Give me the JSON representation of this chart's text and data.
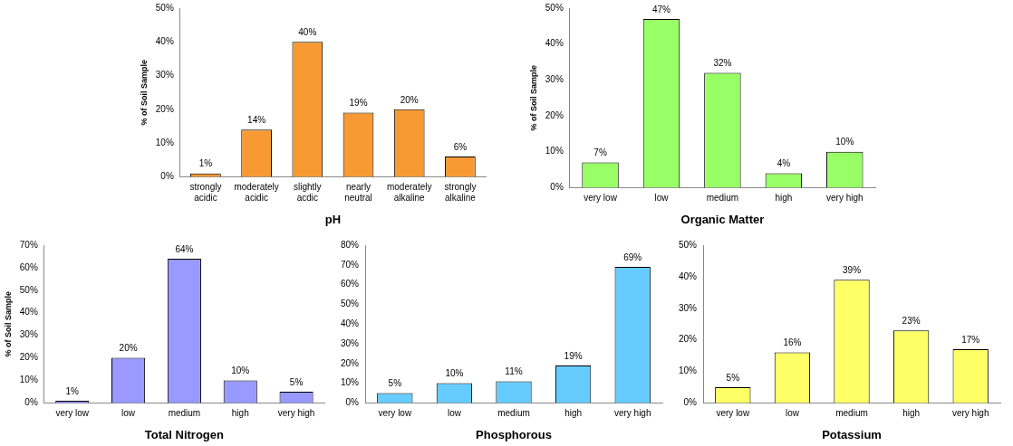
{
  "chart_data": [
    {
      "type": "bar",
      "xlabel": "pH",
      "ylabel": "% of Soil Sample",
      "categories": [
        "strongly acidic",
        "moderately acidic",
        "slightly acdic",
        "nearly neutral",
        "moderately alkaline",
        "strongly alkaline"
      ],
      "values": [
        1,
        14,
        40,
        19,
        20,
        6
      ],
      "value_labels": [
        "1%",
        "14%",
        "40%",
        "19%",
        "20%",
        "6%"
      ],
      "color": "#f79a33",
      "ylim": [
        0,
        50
      ],
      "yticks": [
        {
          "value": 0,
          "label": "0%"
        },
        {
          "value": 10,
          "label": "10%"
        },
        {
          "value": 20,
          "label": "20%"
        },
        {
          "value": 30,
          "label": "30%"
        },
        {
          "value": 40,
          "label": "40%"
        },
        {
          "value": 50,
          "label": "50%"
        }
      ],
      "grid": false,
      "legend": false
    },
    {
      "type": "bar",
      "xlabel": "Organic Matter",
      "ylabel": "% of Soil Sample",
      "categories": [
        "very low",
        "low",
        "medium",
        "high",
        "very high"
      ],
      "values": [
        7,
        47,
        32,
        4,
        10
      ],
      "value_labels": [
        "7%",
        "47%",
        "32%",
        "4%",
        "10%"
      ],
      "color": "#99ff66",
      "ylim": [
        0,
        50
      ],
      "yticks": [
        {
          "value": 0,
          "label": "0%"
        },
        {
          "value": 10,
          "label": "10%"
        },
        {
          "value": 20,
          "label": "20%"
        },
        {
          "value": 30,
          "label": "30%"
        },
        {
          "value": 40,
          "label": "40%"
        },
        {
          "value": 50,
          "label": "50%"
        }
      ],
      "grid": false,
      "legend": false
    },
    {
      "type": "bar",
      "xlabel": "Total Nitrogen",
      "ylabel": "% of Soil Sample",
      "categories": [
        "very low",
        "low",
        "medium",
        "high",
        "very high"
      ],
      "values": [
        1,
        20,
        64,
        10,
        5
      ],
      "value_labels": [
        "1%",
        "20%",
        "64%",
        "10%",
        "5%"
      ],
      "color": "#9999ff",
      "ylim": [
        0,
        70
      ],
      "yticks": [
        {
          "value": 0,
          "label": "0%"
        },
        {
          "value": 10,
          "label": "10%"
        },
        {
          "value": 20,
          "label": "20%"
        },
        {
          "value": 30,
          "label": "30%"
        },
        {
          "value": 40,
          "label": "40%"
        },
        {
          "value": 50,
          "label": "50%"
        },
        {
          "value": 60,
          "label": "60%"
        },
        {
          "value": 70,
          "label": "70%"
        }
      ],
      "grid": false,
      "legend": false
    },
    {
      "type": "bar",
      "xlabel": "Phosphorous",
      "categories": [
        "very low",
        "low",
        "medium",
        "high",
        "very high"
      ],
      "values": [
        5,
        10,
        11,
        19,
        69
      ],
      "value_labels": [
        "5%",
        "10%",
        "11%",
        "19%",
        "69%"
      ],
      "color": "#66ccff",
      "ylim": [
        0,
        80
      ],
      "yticks": [
        {
          "value": 0,
          "label": "0%"
        },
        {
          "value": 10,
          "label": "10%"
        },
        {
          "value": 20,
          "label": "20%"
        },
        {
          "value": 30,
          "label": "30%"
        },
        {
          "value": 40,
          "label": "40%"
        },
        {
          "value": 50,
          "label": "50%"
        },
        {
          "value": 60,
          "label": "60%"
        },
        {
          "value": 70,
          "label": "70%"
        },
        {
          "value": 80,
          "label": "80%"
        }
      ],
      "grid": false,
      "legend": false
    },
    {
      "type": "bar",
      "xlabel": "Potassium",
      "categories": [
        "very low",
        "low",
        "medium",
        "high",
        "very high"
      ],
      "values": [
        5,
        16,
        39,
        23,
        17
      ],
      "value_labels": [
        "5%",
        "16%",
        "39%",
        "23%",
        "17%"
      ],
      "color": "#ffff66",
      "ylim": [
        0,
        50
      ],
      "yticks": [
        {
          "value": 0,
          "label": "0%"
        },
        {
          "value": 10,
          "label": "10%"
        },
        {
          "value": 20,
          "label": "20%"
        },
        {
          "value": 30,
          "label": "30%"
        },
        {
          "value": 40,
          "label": "40%"
        },
        {
          "value": 50,
          "label": "50%"
        }
      ],
      "grid": false,
      "legend": false
    }
  ]
}
